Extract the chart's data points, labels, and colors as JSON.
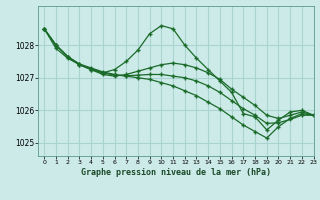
{
  "title": "Graphe pression niveau de la mer (hPa)",
  "bg_color": "#cceae7",
  "grid_color": "#aad4d0",
  "line_color": "#1a6b2a",
  "marker": "+",
  "xlim": [
    -0.5,
    23
  ],
  "ylim": [
    1024.6,
    1029.2
  ],
  "yticks": [
    1025,
    1026,
    1027,
    1028
  ],
  "xticks": [
    0,
    1,
    2,
    3,
    4,
    5,
    6,
    7,
    8,
    9,
    10,
    11,
    12,
    13,
    14,
    15,
    16,
    17,
    18,
    19,
    20,
    21,
    22,
    23
  ],
  "series": [
    [
      1028.5,
      1027.9,
      1027.6,
      1027.4,
      1027.25,
      1027.15,
      1027.25,
      1027.5,
      1027.85,
      1028.35,
      1028.6,
      1028.5,
      1028.0,
      1027.6,
      1027.25,
      1026.9,
      1026.55,
      1025.9,
      1025.8,
      1025.4,
      1025.7,
      1025.95,
      1026.0,
      1025.85
    ],
    [
      1028.5,
      1028.0,
      1027.65,
      1027.4,
      1027.25,
      1027.1,
      1027.05,
      1027.1,
      1027.2,
      1027.3,
      1027.4,
      1027.45,
      1027.4,
      1027.3,
      1027.15,
      1026.95,
      1026.65,
      1026.4,
      1026.15,
      1025.85,
      1025.75,
      1025.85,
      1025.95,
      1025.85
    ],
    [
      1028.5,
      1028.0,
      1027.65,
      1027.42,
      1027.28,
      1027.15,
      1027.08,
      1027.06,
      1027.08,
      1027.1,
      1027.1,
      1027.05,
      1027.0,
      1026.9,
      1026.75,
      1026.55,
      1026.3,
      1026.05,
      1025.85,
      1025.6,
      1025.62,
      1025.72,
      1025.85,
      1025.85
    ],
    [
      1028.5,
      1028.0,
      1027.65,
      1027.42,
      1027.3,
      1027.18,
      1027.1,
      1027.05,
      1027.0,
      1026.95,
      1026.85,
      1026.75,
      1026.6,
      1026.45,
      1026.25,
      1026.05,
      1025.8,
      1025.55,
      1025.35,
      1025.15,
      1025.5,
      1025.75,
      1025.9,
      1025.85
    ]
  ]
}
